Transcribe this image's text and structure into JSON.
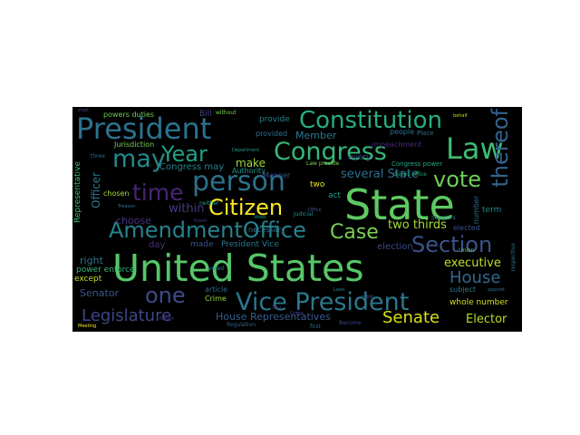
{
  "wordcloud": {
    "words": [
      {
        "text": "United States",
        "color": "#56c667"
      },
      {
        "text": "State",
        "color": "#5ec962"
      },
      {
        "text": "President",
        "color": "#2c728e"
      },
      {
        "text": "Constitution",
        "color": "#27ad81"
      },
      {
        "text": "Law",
        "color": "#3fbc73"
      },
      {
        "text": "Congress",
        "color": "#35b779"
      },
      {
        "text": "Vice President",
        "color": "#2a788e"
      },
      {
        "text": "person",
        "color": "#2d708e"
      },
      {
        "text": "AmendmentOffice",
        "color": "#26828e"
      },
      {
        "text": "may",
        "color": "#238a8d"
      },
      {
        "text": "Year",
        "color": "#1fa187"
      },
      {
        "text": "time",
        "color": "#482475"
      },
      {
        "text": "Citizen",
        "color": "#fde725"
      },
      {
        "text": "vote",
        "color": "#6ece58"
      },
      {
        "text": "thereof",
        "color": "#33638d"
      },
      {
        "text": "Section",
        "color": "#3b528b"
      },
      {
        "text": "Case",
        "color": "#7ad151"
      },
      {
        "text": "one",
        "color": "#3e4a89"
      },
      {
        "text": "Legislature",
        "color": "#404688"
      },
      {
        "text": "Senate",
        "color": "#d8e219"
      },
      {
        "text": "House",
        "color": "#31688e"
      },
      {
        "text": "executive",
        "color": "#bddf26"
      },
      {
        "text": "Elector",
        "color": "#b5de2b"
      },
      {
        "text": "two thirds",
        "color": "#a2da37"
      },
      {
        "text": "several State",
        "color": "#2e6f8e"
      },
      {
        "text": "Member",
        "color": "#29798e"
      },
      {
        "text": "make",
        "color": "#9fda3a"
      },
      {
        "text": "within",
        "color": "#443983"
      },
      {
        "text": "Congress may",
        "color": "#26828e"
      },
      {
        "text": "choose",
        "color": "#46327e"
      },
      {
        "text": "House Representatives",
        "color": "#365d8d"
      },
      {
        "text": "Senator",
        "color": "#38588c"
      },
      {
        "text": "right",
        "color": "#2c728e"
      },
      {
        "text": "Officer",
        "color": "#2a768e"
      },
      {
        "text": "Representative",
        "color": "#3dbc74"
      },
      {
        "text": "powers duties",
        "color": "#6ccd5a"
      },
      {
        "text": "Jurisdiction",
        "color": "#7ad151"
      },
      {
        "text": "Bill",
        "color": "#414487"
      },
      {
        "text": "provide",
        "color": "#25838e"
      },
      {
        "text": "provided",
        "color": "#2f6c8e"
      },
      {
        "text": "every",
        "color": "#3d4e8a"
      },
      {
        "text": "people",
        "color": "#2e6e8e"
      },
      {
        "text": "Place",
        "color": "#2b758e"
      },
      {
        "text": "Manner",
        "color": "#3a548c"
      },
      {
        "text": "Authority",
        "color": "#1f968b"
      },
      {
        "text": "chosen",
        "color": "#a8db34"
      },
      {
        "text": "two",
        "color": "#e5e419"
      },
      {
        "text": "act",
        "color": "#1f9f88"
      },
      {
        "text": "day",
        "color": "#472e7c"
      },
      {
        "text": "made",
        "color": "#39568c"
      },
      {
        "text": "President Vice",
        "color": "#2a788e"
      },
      {
        "text": "necessary",
        "color": "#2b748e"
      },
      {
        "text": "election",
        "color": "#3e4989"
      },
      {
        "text": "term",
        "color": "#23898e"
      },
      {
        "text": "elected",
        "color": "#3b518b"
      },
      {
        "text": "power enforce",
        "color": "#35b779"
      },
      {
        "text": "except",
        "color": "#c2df23"
      },
      {
        "text": "article",
        "color": "#31668e"
      },
      {
        "text": "Crime",
        "color": "#95d840"
      },
      {
        "text": "whole number",
        "color": "#d2e21b"
      },
      {
        "text": "subject",
        "color": "#2a788e"
      },
      {
        "text": "Congress power",
        "color": "#22a884"
      },
      {
        "text": "impeachment",
        "color": "#482878"
      },
      {
        "text": "duties office",
        "color": "#25ab82"
      },
      {
        "text": "number",
        "color": "#2e6e8e"
      },
      {
        "text": "voted",
        "color": "#287d8e"
      },
      {
        "text": "neither",
        "color": "#20a486"
      },
      {
        "text": "Law provide",
        "color": "#7fd34e"
      },
      {
        "text": "Judicial",
        "color": "#1f948c"
      },
      {
        "text": "first",
        "color": "#2d718e"
      },
      {
        "text": "Become",
        "color": "#3f4788"
      },
      {
        "text": "Regulation",
        "color": "#32648e"
      },
      {
        "text": "Senators",
        "color": "#26828e"
      },
      {
        "text": "without",
        "color": "#7fd34e"
      },
      {
        "text": "three",
        "color": "#2e6e8e"
      },
      {
        "text": "Department",
        "color": "#1f9e89"
      },
      {
        "text": "shall",
        "color": "#3e4a89"
      },
      {
        "text": "Nation",
        "color": "#453781"
      },
      {
        "text": "respective",
        "color": "#2d708e"
      },
      {
        "text": "Treason",
        "color": "#2a788e"
      },
      {
        "text": "Trial",
        "color": "#482576"
      },
      {
        "text": "Crime",
        "color": "#3f4889"
      },
      {
        "text": "Union",
        "color": "#6ece58"
      },
      {
        "text": "Votes",
        "color": "#1f9a8a"
      },
      {
        "text": "Office",
        "color": "#3a538b"
      },
      {
        "text": "Laws",
        "color": "#26828e"
      },
      {
        "text": "public",
        "color": "#3b528b"
      },
      {
        "text": "Power",
        "color": "#472d7b"
      },
      {
        "text": "appoint",
        "color": "#2c738e"
      },
      {
        "text": "Meeting",
        "color": "#fde725"
      },
      {
        "text": "behalf",
        "color": "#b8de29"
      }
    ]
  }
}
